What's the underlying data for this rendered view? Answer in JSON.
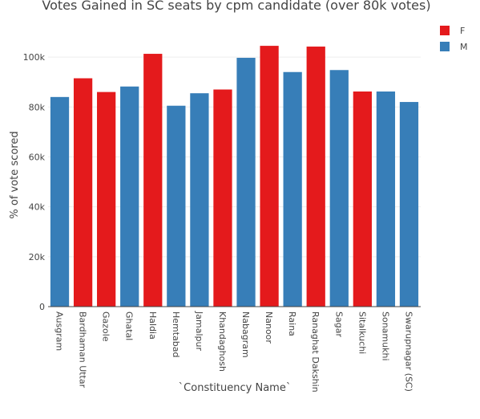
{
  "chart_data": {
    "type": "bar",
    "title": "Votes Gained in SC seats by cpm candidate (over 80k votes)",
    "xlabel": "`Constituency Name`",
    "ylabel": "% of vote scored",
    "ylim": [
      0,
      110000
    ],
    "yticks": [
      0,
      20000,
      40000,
      60000,
      80000,
      100000
    ],
    "ytick_labels": [
      "0",
      "20k",
      "40k",
      "60k",
      "80k",
      "100k"
    ],
    "grid": true,
    "legend_placement": "top-right",
    "legend": [
      {
        "name": "F",
        "color": "#e41a1c"
      },
      {
        "name": "M",
        "color": "#377eb8"
      }
    ],
    "categories": [
      "Ausgram",
      "Bardhaman Uttar",
      "Gazole",
      "Ghatal",
      "Haldia",
      "Hemtabad",
      "Jamalpur",
      "Khandaghosh",
      "Nabagram",
      "Nanoor",
      "Raina",
      "Ranaghat Dakshin",
      "Sagar",
      "Sitalkuchi",
      "Sonamukhi",
      "Swarupnagar (SC)"
    ],
    "genders": [
      "M",
      "F",
      "F",
      "M",
      "F",
      "M",
      "M",
      "F",
      "M",
      "F",
      "M",
      "F",
      "M",
      "F",
      "M",
      "M"
    ],
    "values": [
      84000,
      91500,
      86000,
      88200,
      101300,
      80500,
      85500,
      87000,
      99700,
      104500,
      94000,
      104200,
      94800,
      86200,
      86200,
      82000
    ]
  }
}
